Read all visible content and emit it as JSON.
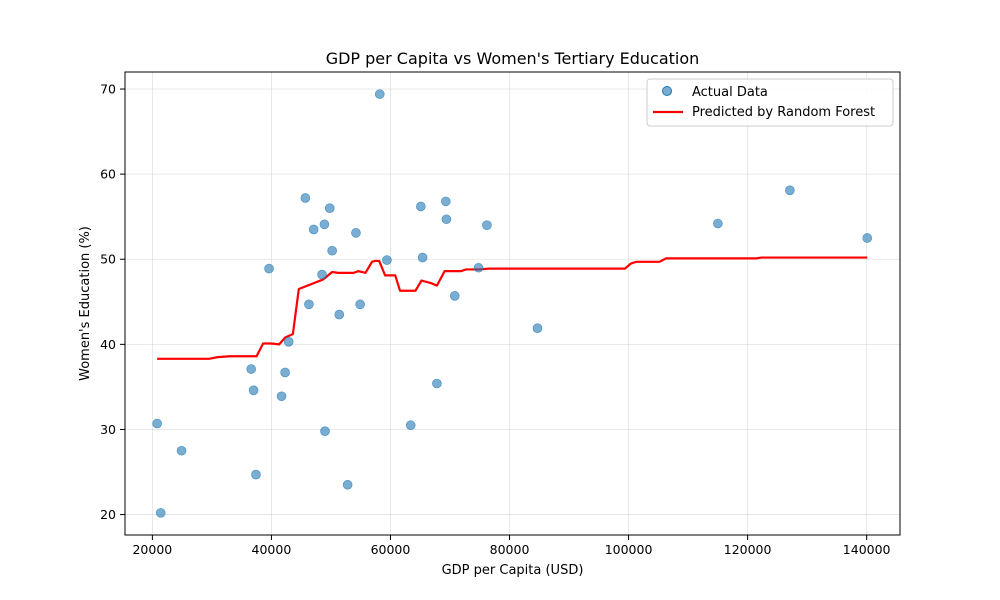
{
  "chart_data": {
    "type": "scatter",
    "title": "GDP per Capita vs Women's Tertiary Education",
    "xlabel": "GDP per Capita (USD)",
    "ylabel": "Women's Education (%)",
    "xlim": [
      15400,
      145600
    ],
    "ylim": [
      17.6,
      72.0
    ],
    "xticks": [
      20000,
      40000,
      60000,
      80000,
      100000,
      120000,
      140000
    ],
    "yticks": [
      20,
      30,
      40,
      50,
      60,
      70
    ],
    "xtick_labels": [
      "20000",
      "40000",
      "60000",
      "80000",
      "100000",
      "120000",
      "140000"
    ],
    "ytick_labels": [
      "20",
      "30",
      "40",
      "50",
      "60",
      "70"
    ],
    "grid": true,
    "legend_position": "top-right",
    "legend": [
      "Actual Data",
      "Predicted by Random Forest"
    ],
    "colors": {
      "points": "#1f77b4",
      "line": "#ff0000"
    },
    "series": [
      {
        "name": "Actual Data",
        "type": "scatter",
        "points": [
          [
            20800,
            30.7
          ],
          [
            21400,
            20.2
          ],
          [
            24900,
            27.5
          ],
          [
            36600,
            37.1
          ],
          [
            37000,
            34.6
          ],
          [
            37400,
            24.7
          ],
          [
            39600,
            48.9
          ],
          [
            41700,
            33.9
          ],
          [
            42300,
            36.7
          ],
          [
            42900,
            40.3
          ],
          [
            45700,
            57.2
          ],
          [
            46300,
            44.7
          ],
          [
            47100,
            53.5
          ],
          [
            48500,
            48.2
          ],
          [
            48900,
            54.1
          ],
          [
            49000,
            29.8
          ],
          [
            49800,
            56.0
          ],
          [
            50200,
            51.0
          ],
          [
            51400,
            43.5
          ],
          [
            52800,
            23.5
          ],
          [
            54200,
            53.1
          ],
          [
            54900,
            44.7
          ],
          [
            58200,
            69.4
          ],
          [
            59400,
            49.9
          ],
          [
            63400,
            30.5
          ],
          [
            65100,
            56.2
          ],
          [
            65400,
            50.2
          ],
          [
            67800,
            35.4
          ],
          [
            69300,
            56.8
          ],
          [
            69400,
            54.7
          ],
          [
            70800,
            45.7
          ],
          [
            74800,
            49.0
          ],
          [
            76200,
            54.0
          ],
          [
            84700,
            41.9
          ],
          [
            115000,
            54.2
          ],
          [
            127100,
            58.1
          ],
          [
            140100,
            52.5
          ]
        ]
      },
      {
        "name": "Predicted by Random Forest",
        "type": "line",
        "points": [
          [
            20800,
            38.3
          ],
          [
            29500,
            38.3
          ],
          [
            31000,
            38.5
          ],
          [
            33000,
            38.6
          ],
          [
            37500,
            38.6
          ],
          [
            38600,
            40.1
          ],
          [
            40000,
            40.1
          ],
          [
            41300,
            40.0
          ],
          [
            42300,
            40.8
          ],
          [
            43600,
            41.2
          ],
          [
            44600,
            46.5
          ],
          [
            48600,
            47.6
          ],
          [
            49000,
            47.8
          ],
          [
            50200,
            48.5
          ],
          [
            51200,
            48.4
          ],
          [
            53800,
            48.4
          ],
          [
            54600,
            48.6
          ],
          [
            55800,
            48.4
          ],
          [
            56900,
            49.7
          ],
          [
            57400,
            49.8
          ],
          [
            58100,
            49.8
          ],
          [
            59100,
            48.1
          ],
          [
            60800,
            48.1
          ],
          [
            61600,
            46.3
          ],
          [
            64200,
            46.3
          ],
          [
            65200,
            47.5
          ],
          [
            66800,
            47.2
          ],
          [
            67800,
            46.9
          ],
          [
            69100,
            48.6
          ],
          [
            71800,
            48.6
          ],
          [
            72700,
            48.8
          ],
          [
            75000,
            48.8
          ],
          [
            76500,
            48.9
          ],
          [
            99400,
            48.9
          ],
          [
            100400,
            49.5
          ],
          [
            101300,
            49.7
          ],
          [
            105200,
            49.7
          ],
          [
            106300,
            50.1
          ],
          [
            121500,
            50.1
          ],
          [
            122300,
            50.2
          ],
          [
            140100,
            50.2
          ]
        ]
      }
    ]
  }
}
